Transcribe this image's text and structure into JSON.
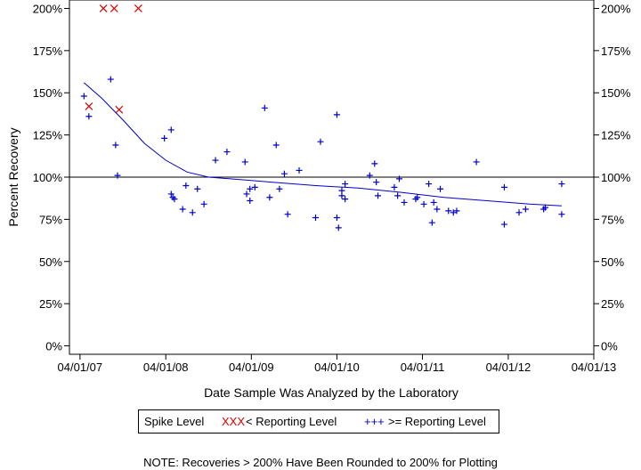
{
  "chart_data": {
    "type": "scatter",
    "xlabel": "Date Sample Was Analyzed by the Laboratory",
    "ylabel": "Percent Recovery",
    "x_ticks": [
      "04/01/07",
      "04/01/08",
      "04/01/09",
      "04/01/10",
      "04/01/11",
      "04/01/12",
      "04/01/13"
    ],
    "x_range": [
      "2007-02-15",
      "2013-04-01"
    ],
    "y_ticks": [
      0,
      25,
      50,
      75,
      100,
      125,
      150,
      175,
      200
    ],
    "y_tick_labels": [
      "0%",
      "25%",
      "50%",
      "75%",
      "100%",
      "125%",
      "150%",
      "175%",
      "200%"
    ],
    "ylim": [
      -5,
      205
    ],
    "reference_line": 100,
    "legend": {
      "title": "Spike Level",
      "entries": [
        {
          "marker": "XXX",
          "label": "< Reporting Level"
        },
        {
          "marker": "+++",
          "label": ">= Reporting Level"
        }
      ]
    },
    "series": [
      {
        "name": "< Reporting Level",
        "marker": "x",
        "color": "#dd0000",
        "points": [
          [
            "2007-05-09",
            142
          ],
          [
            "2007-07-10",
            200
          ],
          [
            "2007-08-25",
            200
          ],
          [
            "2007-09-15",
            140
          ],
          [
            "2007-12-06",
            200
          ]
        ]
      },
      {
        "name": ">= Reporting Level",
        "marker": "+",
        "color": "#0000cc",
        "points": [
          [
            "2007-04-18",
            148
          ],
          [
            "2007-05-09",
            136
          ],
          [
            "2007-08-10",
            158
          ],
          [
            "2007-08-31",
            119
          ],
          [
            "2007-09-08",
            101
          ],
          [
            "2008-03-26",
            123
          ],
          [
            "2008-04-24",
            128
          ],
          [
            "2008-04-24",
            90
          ],
          [
            "2008-05-01",
            88
          ],
          [
            "2008-05-08",
            87
          ],
          [
            "2008-06-12",
            81
          ],
          [
            "2008-06-26",
            95
          ],
          [
            "2008-07-24",
            79
          ],
          [
            "2008-08-14",
            93
          ],
          [
            "2008-09-11",
            84
          ],
          [
            "2008-10-30",
            110
          ],
          [
            "2008-12-18",
            115
          ],
          [
            "2009-03-05",
            109
          ],
          [
            "2009-03-12",
            90
          ],
          [
            "2009-03-26",
            86
          ],
          [
            "2009-03-26",
            93
          ],
          [
            "2009-04-16",
            94
          ],
          [
            "2009-05-28",
            141
          ],
          [
            "2009-06-18",
            88
          ],
          [
            "2009-07-16",
            119
          ],
          [
            "2009-07-30",
            93
          ],
          [
            "2009-08-20",
            102
          ],
          [
            "2009-09-03",
            78
          ],
          [
            "2009-10-22",
            104
          ],
          [
            "2009-12-31",
            76
          ],
          [
            "2010-01-21",
            121
          ],
          [
            "2010-04-01",
            137
          ],
          [
            "2010-04-01",
            76
          ],
          [
            "2010-04-08",
            70
          ],
          [
            "2010-04-22",
            89
          ],
          [
            "2010-04-22",
            92
          ],
          [
            "2010-05-06",
            96
          ],
          [
            "2010-05-06",
            87
          ],
          [
            "2010-08-19",
            101
          ],
          [
            "2010-09-09",
            108
          ],
          [
            "2010-09-16",
            97
          ],
          [
            "2010-09-23",
            89
          ],
          [
            "2010-12-02",
            94
          ],
          [
            "2010-12-16",
            89
          ],
          [
            "2010-12-23",
            99
          ],
          [
            "2011-01-13",
            85
          ],
          [
            "2011-03-03",
            87
          ],
          [
            "2011-03-10",
            88
          ],
          [
            "2011-04-07",
            84
          ],
          [
            "2011-04-28",
            96
          ],
          [
            "2011-05-12",
            73
          ],
          [
            "2011-05-19",
            85
          ],
          [
            "2011-06-02",
            81
          ],
          [
            "2011-06-16",
            93
          ],
          [
            "2011-07-21",
            80
          ],
          [
            "2011-08-11",
            79
          ],
          [
            "2011-08-25",
            80
          ],
          [
            "2011-11-17",
            109
          ],
          [
            "2012-03-15",
            94
          ],
          [
            "2012-03-15",
            72
          ],
          [
            "2012-05-17",
            79
          ],
          [
            "2012-06-14",
            81
          ],
          [
            "2012-08-30",
            81
          ],
          [
            "2012-09-06",
            82
          ],
          [
            "2012-11-15",
            96
          ],
          [
            "2012-11-15",
            78
          ]
        ]
      },
      {
        "name": "trend",
        "marker": "line",
        "color": "#0000cc",
        "points": [
          [
            "2007-04-18",
            156
          ],
          [
            "2007-07-01",
            147
          ],
          [
            "2007-10-01",
            134
          ],
          [
            "2008-01-01",
            120
          ],
          [
            "2008-04-01",
            110
          ],
          [
            "2008-07-01",
            103
          ],
          [
            "2008-10-01",
            100
          ],
          [
            "2009-01-01",
            99
          ],
          [
            "2009-04-01",
            98
          ],
          [
            "2009-07-01",
            97
          ],
          [
            "2010-01-01",
            95
          ],
          [
            "2010-07-01",
            93.5
          ],
          [
            "2011-01-01",
            91
          ],
          [
            "2011-07-01",
            88
          ],
          [
            "2012-01-01",
            86
          ],
          [
            "2012-07-01",
            84
          ],
          [
            "2012-11-15",
            83
          ]
        ]
      }
    ]
  },
  "note": "NOTE: Recoveries > 200% Have Been Rounded to 200% for Plotting"
}
